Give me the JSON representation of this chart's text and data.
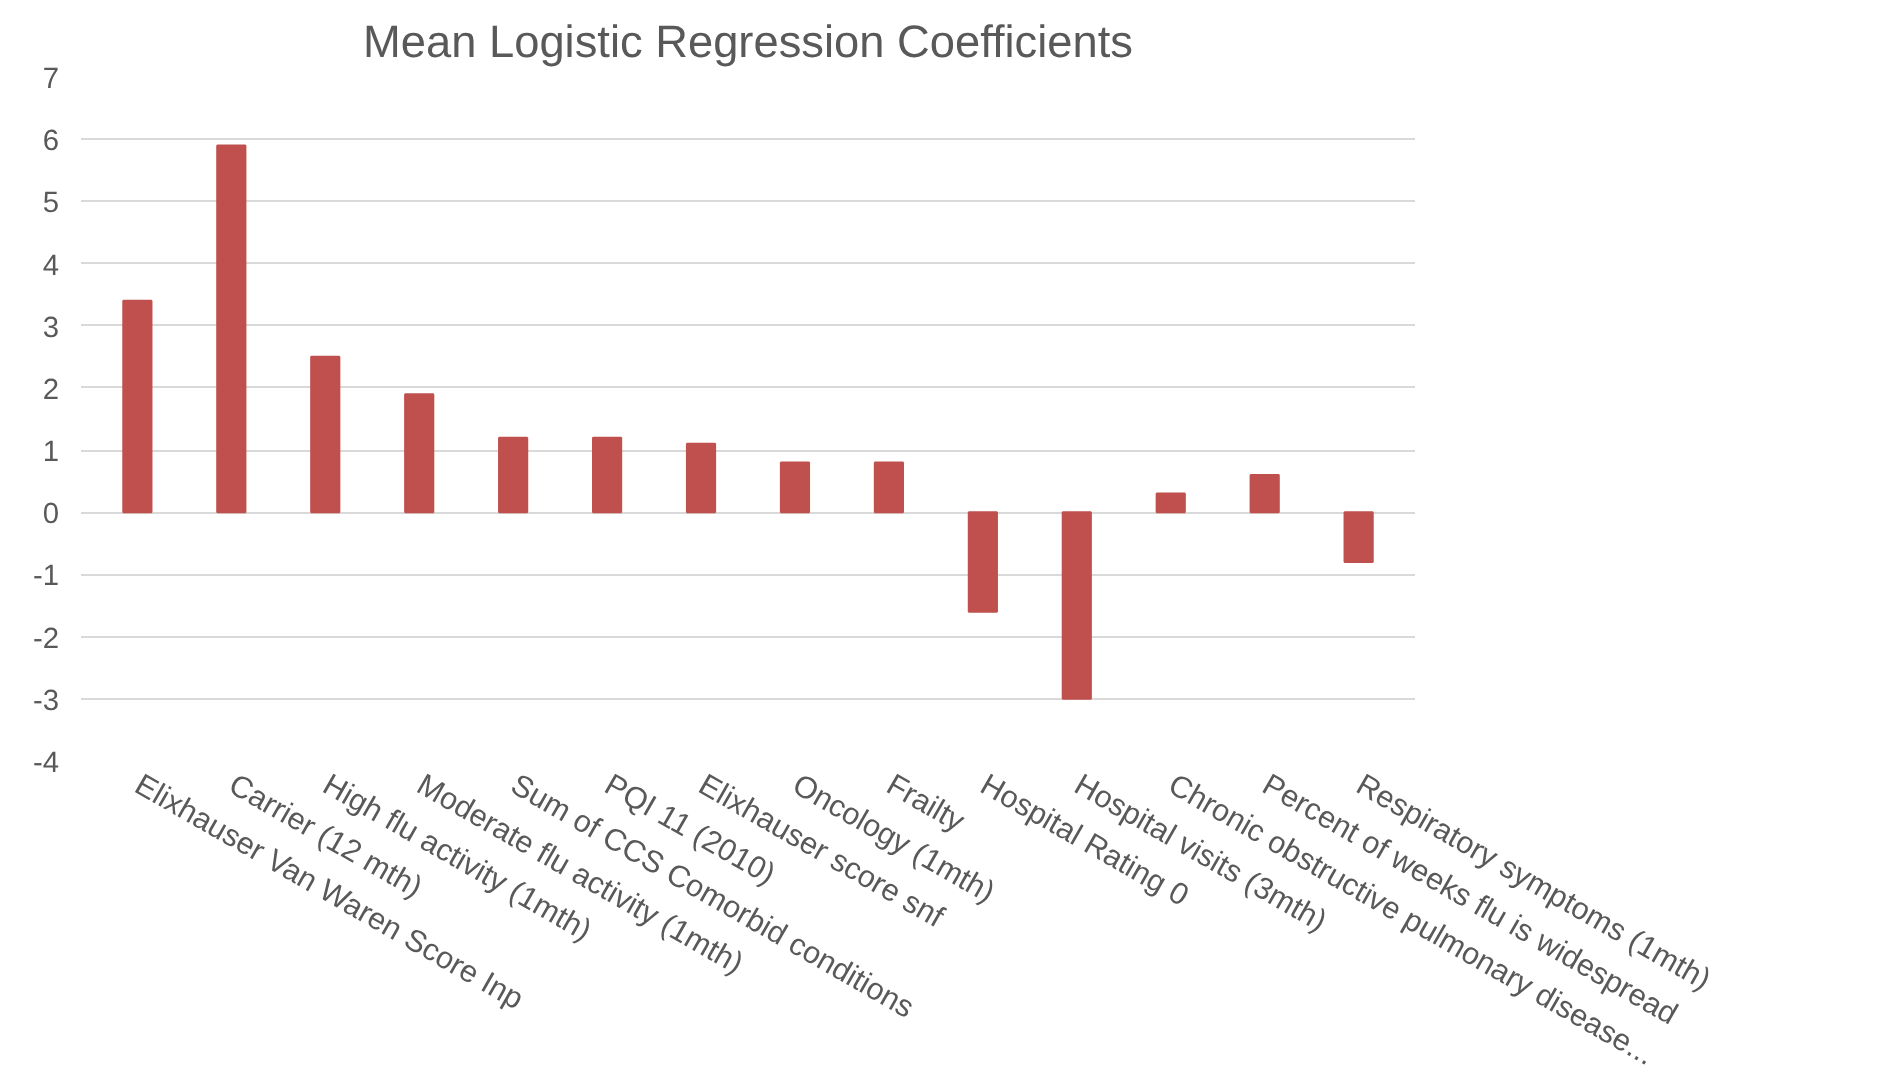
{
  "chart_data": {
    "type": "bar",
    "title": "Mean Logistic Regression Coefficients",
    "categories": [
      "Elixhauser Van Waren Score Inp",
      "Carrier (12 mth)",
      "High flu activity (1mth)",
      "Moderate flu activity (1mth)",
      "Sum of CCS Comorbid conditions",
      "PQI 11 (2010)",
      "Elixhauser score snf",
      "Oncology (1mth)",
      "Frailty",
      "Hospital Rating 0",
      "Hospital visits (3mth)",
      "Chronic obstructive pulmonary disease...",
      "Percent of weeks flu is widespread",
      "Respiratory symptoms (1mth)"
    ],
    "values": [
      3.4,
      5.9,
      2.5,
      1.9,
      1.2,
      1.2,
      1.1,
      0.8,
      0.8,
      -1.6,
      -3.0,
      0.3,
      0.6,
      -0.8
    ],
    "color": "#c0504d",
    "ylim": [
      -4,
      7
    ],
    "yticks": [
      -4,
      -3,
      -2,
      -1,
      0,
      1,
      2,
      3,
      4,
      5,
      6,
      7
    ],
    "grid": "y"
  }
}
